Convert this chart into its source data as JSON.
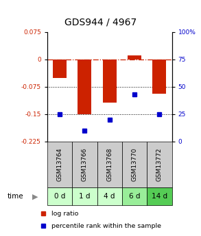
{
  "title": "GDS944 / 4967",
  "samples": [
    "GSM13764",
    "GSM13766",
    "GSM13768",
    "GSM13770",
    "GSM13772"
  ],
  "timepoints": [
    "0 d",
    "1 d",
    "4 d",
    "6 d",
    "14 d"
  ],
  "log_ratios": [
    -0.052,
    -0.15,
    -0.118,
    0.01,
    -0.095
  ],
  "percentile_ranks": [
    25,
    10,
    20,
    43,
    25
  ],
  "ylim_left": [
    -0.225,
    0.075
  ],
  "yticks_left": [
    0.075,
    0,
    -0.075,
    -0.15,
    -0.225
  ],
  "ylim_right": [
    0,
    100
  ],
  "yticks_right": [
    100,
    75,
    50,
    25,
    0
  ],
  "bar_color": "#CC2200",
  "point_color": "#0000CC",
  "zero_line_color": "#CC2200",
  "dotted_line_color": "#000000",
  "bg_color": "#ffffff",
  "sample_box_color": "#cccccc",
  "time_box_colors": [
    "#ccffcc",
    "#ccffcc",
    "#ccffcc",
    "#99ee99",
    "#55cc55"
  ],
  "title_fontsize": 10,
  "tick_fontsize": 6.5,
  "sample_fontsize": 6.5,
  "time_fontsize": 7.5
}
